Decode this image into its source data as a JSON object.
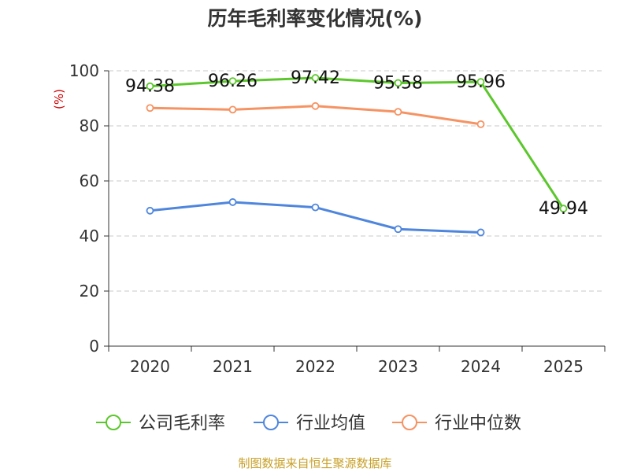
{
  "chart_data": {
    "type": "line",
    "title": "历年毛利率变化情况(%)",
    "ylabel": "(%)",
    "xlabel": "",
    "categories": [
      "2020",
      "2021",
      "2022",
      "2023",
      "2024",
      "2025"
    ],
    "ylim": [
      0,
      100
    ],
    "yticks": [
      0,
      20,
      40,
      60,
      80,
      100
    ],
    "grid": "horizontal dashed",
    "legend_position": "bottom",
    "series": [
      {
        "name": "公司毛利率",
        "color": "#5cc72c",
        "values": [
          94.38,
          96.26,
          97.42,
          95.58,
          95.96,
          49.94
        ],
        "labels": [
          "94.38",
          "96.26",
          "97.42",
          "95.58",
          "95.96",
          "49.94"
        ]
      },
      {
        "name": "行业均值",
        "color": "#4f86dd",
        "values": [
          49.2,
          52.3,
          50.4,
          42.5,
          41.3,
          null
        ]
      },
      {
        "name": "行业中位数",
        "color": "#f59363",
        "values": [
          86.5,
          85.9,
          87.2,
          85.1,
          80.6,
          null
        ]
      }
    ]
  },
  "source": "制图数据来自恒生聚源数据库"
}
